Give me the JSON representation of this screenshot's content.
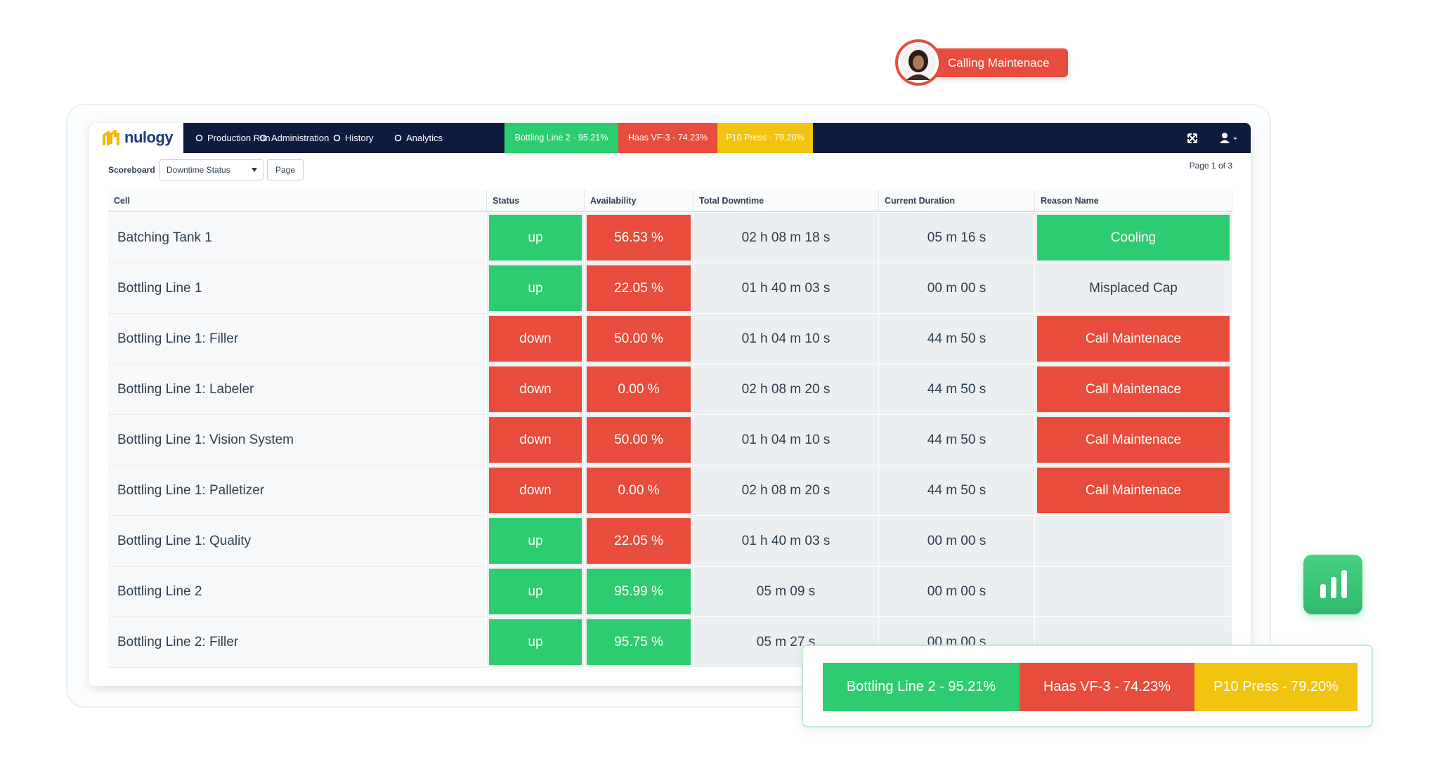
{
  "notification": {
    "label": "Calling Maintenace"
  },
  "nav": {
    "logo": "nulogy",
    "items": [
      "Production Run",
      "Administration",
      "History",
      "Analytics"
    ],
    "badges": [
      {
        "label": "Bottling Line 2 - 95.21%",
        "color": "#2ecc71"
      },
      {
        "label": "Haas VF-3 - 74.23%",
        "color": "#e74c3c"
      },
      {
        "label": "P10 Press - 79.20%",
        "color": "#f1c40f"
      }
    ]
  },
  "toolbar": {
    "label": "Scoreboard",
    "select": "Downtime Status",
    "button": "Page",
    "pager": "Page 1 of 3"
  },
  "table": {
    "headers": [
      "Cell",
      "Status",
      "Availability",
      "Total Downtime",
      "Current Duration",
      "Reason Name"
    ],
    "rows": [
      {
        "cell": "Batching Tank 1",
        "status": "up",
        "status_color": "#2ecc71",
        "availability": "56.53 %",
        "availability_color": "#e74c3c",
        "total_downtime": "02 h 08 m 18 s",
        "current_duration": "05 m 16 s",
        "reason": "Cooling",
        "reason_color": "#2ecc71"
      },
      {
        "cell": "Bottling Line 1",
        "status": "up",
        "status_color": "#2ecc71",
        "availability": "22.05 %",
        "availability_color": "#e74c3c",
        "total_downtime": "01 h 40 m 03 s",
        "current_duration": "00 m 00 s",
        "reason": "Misplaced Cap"
      },
      {
        "cell": "Bottling Line 1: Filler",
        "status": "down",
        "status_color": "#e74c3c",
        "availability": "50.00 %",
        "availability_color": "#e74c3c",
        "total_downtime": "01 h 04 m 10 s",
        "current_duration": "44 m 50 s",
        "reason": "Call Maintenace",
        "reason_color": "#e74c3c"
      },
      {
        "cell": "Bottling Line 1: Labeler",
        "status": "down",
        "status_color": "#e74c3c",
        "availability": "0.00 %",
        "availability_color": "#e74c3c",
        "total_downtime": "02 h 08 m 20 s",
        "current_duration": "44 m 50 s",
        "reason": "Call Maintenace",
        "reason_color": "#e74c3c"
      },
      {
        "cell": "Bottling Line 1: Vision System",
        "status": "down",
        "status_color": "#e74c3c",
        "availability": "50.00 %",
        "availability_color": "#e74c3c",
        "total_downtime": "01 h 04 m 10 s",
        "current_duration": "44 m 50 s",
        "reason": "Call Maintenace",
        "reason_color": "#e74c3c"
      },
      {
        "cell": "Bottling Line 1: Palletizer",
        "status": "down",
        "status_color": "#e74c3c",
        "availability": "0.00 %",
        "availability_color": "#e74c3c",
        "total_downtime": "02 h 08 m 20 s",
        "current_duration": "44 m 50 s",
        "reason": "Call Maintenace",
        "reason_color": "#e74c3c"
      },
      {
        "cell": "Bottling Line 1: Quality",
        "status": "up",
        "status_color": "#2ecc71",
        "availability": "22.05 %",
        "availability_color": "#e74c3c",
        "total_downtime": "01 h 40 m 03 s",
        "current_duration": "00 m 00 s"
      },
      {
        "cell": "Bottling Line 2",
        "status": "up",
        "status_color": "#2ecc71",
        "availability": "95.99 %",
        "availability_color": "#2ecc71",
        "total_downtime": "05 m 09 s",
        "current_duration": "00 m 00 s"
      },
      {
        "cell": "Bottling Line 2: Filler",
        "status": "up",
        "status_color": "#2ecc71",
        "availability": "95.75 %",
        "availability_color": "#2ecc71",
        "total_downtime": "05 m 27 s",
        "current_duration": "00 m 00 s"
      }
    ]
  },
  "overlay": {
    "badges": [
      {
        "label": "Bottling Line 2 - 95.21%",
        "color": "#2ecc71"
      },
      {
        "label": "Haas VF-3 - 74.23%",
        "color": "#e74c3c"
      },
      {
        "label": "P10 Press - 79.20%",
        "color": "#f1c40f"
      }
    ]
  }
}
